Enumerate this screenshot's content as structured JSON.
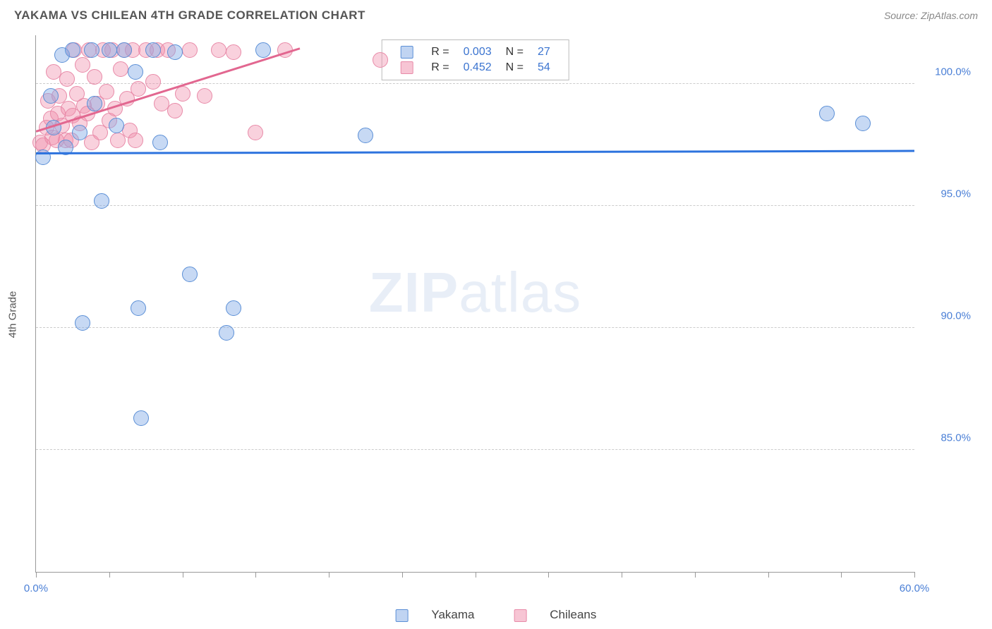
{
  "header": {
    "title": "YAKAMA VS CHILEAN 4TH GRADE CORRELATION CHART",
    "source_label": "Source:",
    "source_value": "ZipAtlas.com"
  },
  "ylabel": "4th Grade",
  "watermark": {
    "bold": "ZIP",
    "light": "atlas"
  },
  "chart": {
    "type": "scatter",
    "xlim": [
      0,
      60
    ],
    "ylim": [
      80,
      102
    ],
    "yticks": [
      85.0,
      90.0,
      95.0,
      100.0
    ],
    "ytick_labels": [
      "85.0%",
      "90.0%",
      "95.0%",
      "100.0%"
    ],
    "xticks": [
      0,
      5,
      10,
      15,
      20,
      25,
      30,
      35,
      40,
      45,
      50,
      55,
      60
    ],
    "xtick_labels": {
      "0": "0.0%",
      "60": "60.0%"
    },
    "point_radius": 11,
    "colors": {
      "blue_fill": "rgba(130,170,230,0.45)",
      "blue_stroke": "#5b8fd6",
      "pink_fill": "rgba(240,140,170,0.40)",
      "pink_stroke": "#e88aa8",
      "grid": "#cccccc",
      "axis": "#999999",
      "tick_text": "#4a7fd6",
      "background": "#ffffff"
    },
    "series": {
      "yakama": {
        "label": "Yakama",
        "color": "blue",
        "trend": {
          "x1": 0,
          "y1": 97.2,
          "x2": 60,
          "y2": 97.3,
          "color": "#2d73de",
          "width": 2.5
        },
        "points": [
          [
            0.5,
            97.0
          ],
          [
            1.0,
            99.5
          ],
          [
            1.2,
            98.2
          ],
          [
            1.8,
            101.2
          ],
          [
            2.0,
            97.4
          ],
          [
            2.5,
            101.4
          ],
          [
            3.0,
            98.0
          ],
          [
            3.2,
            90.2
          ],
          [
            3.8,
            101.4
          ],
          [
            4.0,
            99.2
          ],
          [
            4.5,
            95.2
          ],
          [
            5.0,
            101.4
          ],
          [
            5.5,
            98.3
          ],
          [
            6.0,
            101.4
          ],
          [
            6.8,
            100.5
          ],
          [
            7.0,
            90.8
          ],
          [
            7.2,
            86.3
          ],
          [
            8.0,
            101.4
          ],
          [
            8.5,
            97.6
          ],
          [
            9.5,
            101.3
          ],
          [
            10.5,
            92.2
          ],
          [
            13.0,
            89.8
          ],
          [
            13.5,
            90.8
          ],
          [
            15.5,
            101.4
          ],
          [
            22.5,
            97.9
          ],
          [
            54.0,
            98.8
          ],
          [
            56.5,
            98.4
          ]
        ]
      },
      "chileans": {
        "label": "Chileans",
        "color": "pink",
        "trend": {
          "x1": 0,
          "y1": 98.1,
          "x2": 18,
          "y2": 101.5,
          "color": "#e26790",
          "width": 2.5
        },
        "points": [
          [
            0.3,
            97.6
          ],
          [
            0.5,
            97.5
          ],
          [
            0.7,
            98.2
          ],
          [
            0.8,
            99.3
          ],
          [
            1.0,
            98.6
          ],
          [
            1.1,
            97.8
          ],
          [
            1.2,
            100.5
          ],
          [
            1.4,
            97.7
          ],
          [
            1.5,
            98.8
          ],
          [
            1.6,
            99.5
          ],
          [
            1.8,
            98.3
          ],
          [
            2.0,
            97.7
          ],
          [
            2.1,
            100.2
          ],
          [
            2.2,
            99.0
          ],
          [
            2.4,
            97.7
          ],
          [
            2.5,
            98.7
          ],
          [
            2.6,
            101.4
          ],
          [
            2.8,
            99.6
          ],
          [
            3.0,
            98.4
          ],
          [
            3.2,
            100.8
          ],
          [
            3.3,
            99.1
          ],
          [
            3.5,
            98.8
          ],
          [
            3.6,
            101.4
          ],
          [
            3.8,
            97.6
          ],
          [
            4.0,
            100.3
          ],
          [
            4.2,
            99.2
          ],
          [
            4.4,
            98.0
          ],
          [
            4.6,
            101.4
          ],
          [
            4.8,
            99.7
          ],
          [
            5.0,
            98.5
          ],
          [
            5.2,
            101.4
          ],
          [
            5.4,
            99.0
          ],
          [
            5.6,
            97.7
          ],
          [
            5.8,
            100.6
          ],
          [
            6.0,
            101.4
          ],
          [
            6.2,
            99.4
          ],
          [
            6.4,
            98.1
          ],
          [
            6.6,
            101.4
          ],
          [
            6.8,
            97.7
          ],
          [
            7.0,
            99.8
          ],
          [
            7.5,
            101.4
          ],
          [
            8.0,
            100.1
          ],
          [
            8.3,
            101.4
          ],
          [
            8.6,
            99.2
          ],
          [
            9.0,
            101.4
          ],
          [
            9.5,
            98.9
          ],
          [
            10.0,
            99.6
          ],
          [
            10.5,
            101.4
          ],
          [
            11.5,
            99.5
          ],
          [
            12.5,
            101.4
          ],
          [
            13.5,
            101.3
          ],
          [
            15.0,
            98.0
          ],
          [
            23.5,
            101.0
          ],
          [
            17.0,
            101.4
          ]
        ]
      }
    }
  },
  "legend_top": {
    "rows": [
      {
        "swatch": "blue",
        "r_label": "R =",
        "r_val": "0.003",
        "n_label": "N =",
        "n_val": "27"
      },
      {
        "swatch": "pink",
        "r_label": "R =",
        "r_val": "0.452",
        "n_label": "N =",
        "n_val": "54"
      }
    ]
  },
  "legend_bottom": {
    "items": [
      {
        "swatch": "blue",
        "label": "Yakama"
      },
      {
        "swatch": "pink",
        "label": "Chileans"
      }
    ]
  }
}
